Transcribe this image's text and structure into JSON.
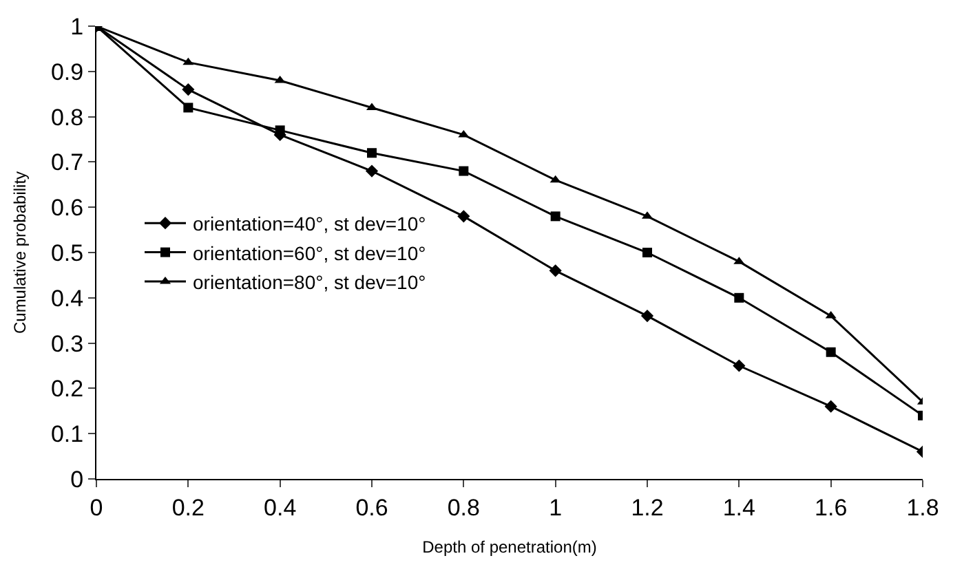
{
  "chart_data": {
    "type": "line",
    "xlabel": "Depth of penetration(m)",
    "ylabel": "Cumulative probability",
    "x": [
      0,
      0.2,
      0.4,
      0.6,
      0.8,
      1,
      1.2,
      1.4,
      1.6,
      1.8
    ],
    "xlim": [
      0,
      1.8
    ],
    "xticks": [
      0,
      0.2,
      0.4,
      0.6,
      0.8,
      1,
      1.2,
      1.4,
      1.6,
      1.8
    ],
    "ylim": [
      0,
      1
    ],
    "yticks": [
      0,
      0.1,
      0.2,
      0.3,
      0.4,
      0.5,
      0.6,
      0.7,
      0.8,
      0.9,
      1
    ],
    "grid": false,
    "legend": "left",
    "line_style": "solid",
    "series": [
      {
        "name": "orientation=40°, st dev=10°",
        "color": "#000000",
        "marker": "diamond",
        "values": [
          1,
          0.86,
          0.76,
          0.68,
          0.58,
          0.46,
          0.36,
          0.25,
          0.16,
          0.06
        ]
      },
      {
        "name": "orientation=60°, st dev=10°",
        "color": "#000000",
        "marker": "square",
        "values": [
          1,
          0.82,
          0.77,
          0.72,
          0.68,
          0.58,
          0.5,
          0.4,
          0.28,
          0.14
        ]
      },
      {
        "name": "orientation=80°, st dev=10°",
        "color": "#000000",
        "marker": "triangle",
        "values": [
          1,
          0.92,
          0.88,
          0.82,
          0.76,
          0.66,
          0.58,
          0.48,
          0.36,
          0.17
        ]
      }
    ]
  }
}
